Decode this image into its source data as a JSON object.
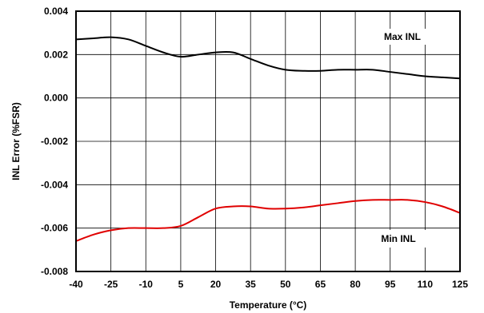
{
  "chart_data": {
    "type": "line",
    "title": "",
    "xlabel": "Temperature (°C)",
    "ylabel": "INL Error (%FSR)",
    "x_ticks": [
      -40,
      -25,
      -10,
      5,
      20,
      35,
      50,
      65,
      80,
      95,
      110,
      125
    ],
    "x_tick_labels": [
      "-40",
      "-25",
      "-10",
      "5",
      "20",
      "35",
      "50",
      "65",
      "80",
      "95",
      "110",
      "125"
    ],
    "y_ticks": [
      0.004,
      0.002,
      0.0,
      -0.002,
      -0.004,
      -0.006,
      -0.008
    ],
    "y_tick_labels": [
      "0.004",
      "0.002",
      "0.000",
      "-0.002",
      "-0.004",
      "-0.006",
      "-0.008"
    ],
    "xlim": [
      -40,
      125
    ],
    "ylim": [
      -0.008,
      0.004
    ],
    "grid": true,
    "series": [
      {
        "name": "Max INL",
        "color": "#000000",
        "x": [
          -40,
          -32.5,
          -25,
          -17.5,
          -10,
          -2.5,
          5,
          12.5,
          20,
          27.5,
          35,
          42.5,
          50,
          57.5,
          65,
          72.5,
          80,
          87.5,
          95,
          102.5,
          110,
          117.5,
          125
        ],
        "y": [
          0.0027,
          0.00275,
          0.0028,
          0.0027,
          0.0024,
          0.0021,
          0.0019,
          0.002,
          0.0021,
          0.0021,
          0.0018,
          0.0015,
          0.0013,
          0.00125,
          0.00125,
          0.0013,
          0.0013,
          0.0013,
          0.0012,
          0.0011,
          0.001,
          0.00095,
          0.0009
        ]
      },
      {
        "name": "Min INL",
        "color": "#e00000",
        "x": [
          -40,
          -32.5,
          -25,
          -17.5,
          -10,
          -2.5,
          5,
          12.5,
          20,
          27.5,
          35,
          42.5,
          50,
          57.5,
          65,
          72.5,
          80,
          87.5,
          95,
          102.5,
          110,
          117.5,
          125
        ],
        "y": [
          -0.0066,
          -0.0063,
          -0.0061,
          -0.006,
          -0.006,
          -0.006,
          -0.0059,
          -0.0055,
          -0.0051,
          -0.005,
          -0.005,
          -0.0051,
          -0.0051,
          -0.00505,
          -0.00495,
          -0.00485,
          -0.00475,
          -0.0047,
          -0.0047,
          -0.0047,
          -0.0048,
          -0.005,
          -0.0053
        ]
      }
    ]
  }
}
